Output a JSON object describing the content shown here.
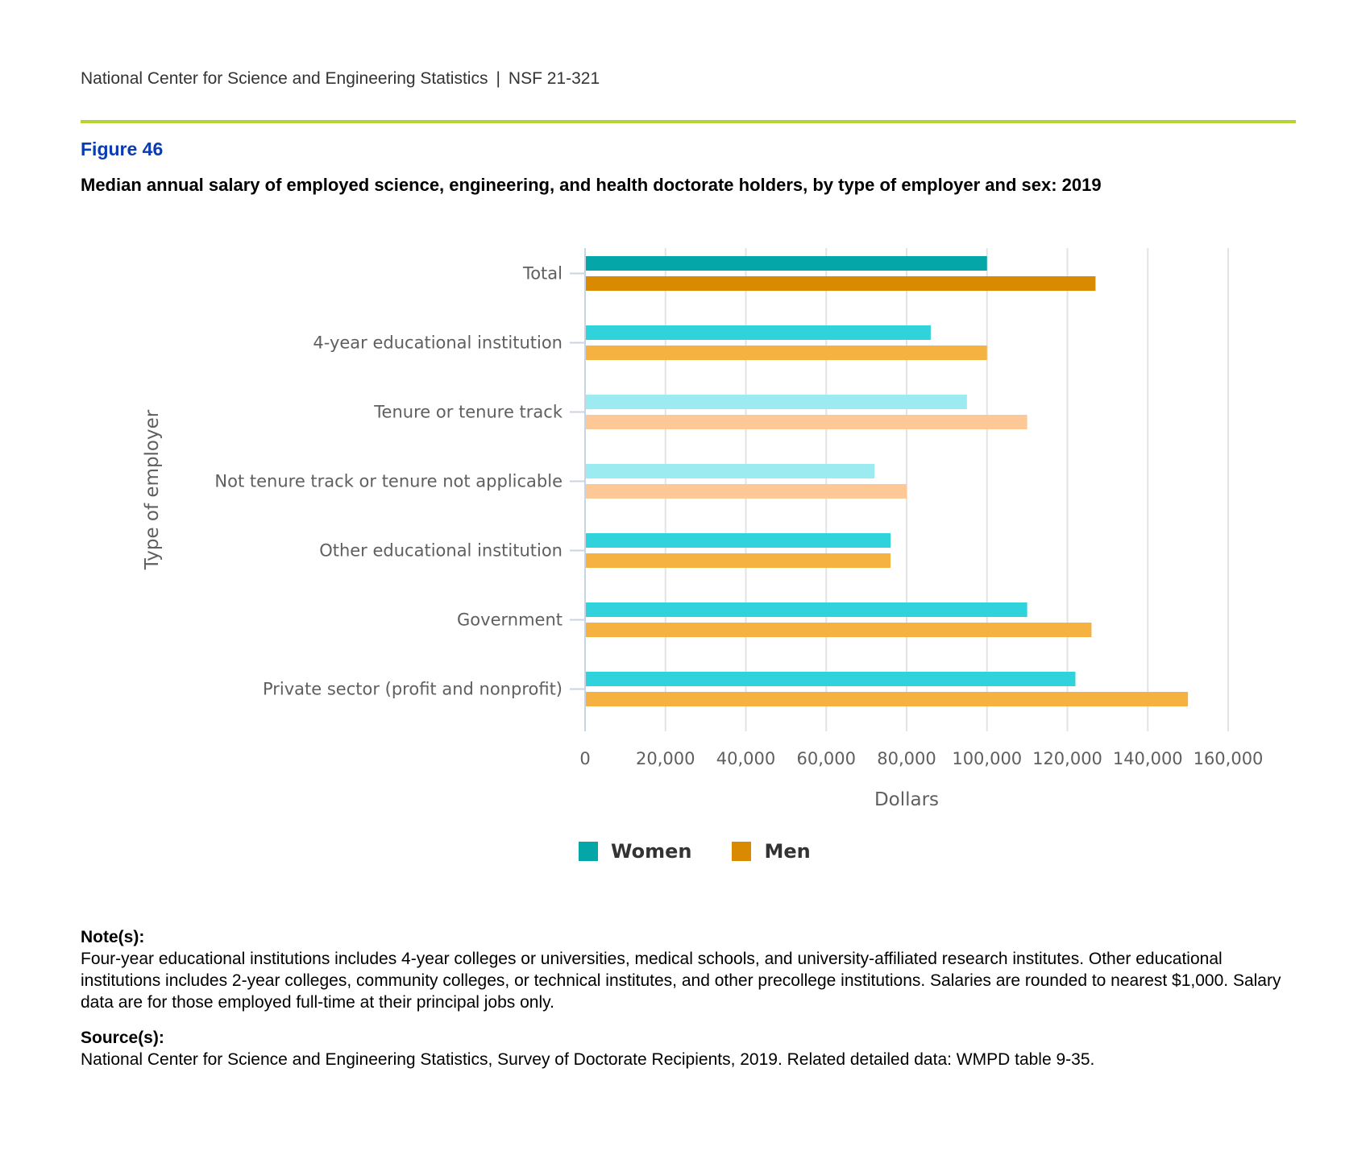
{
  "header": {
    "org": "National Center for Science and Engineering Statistics",
    "separator": "|",
    "report": "NSF 21-321"
  },
  "figure": {
    "label": "Figure 46",
    "title": "Median annual salary of employed science, engineering, and health doctorate holders, by type of employer and sex: 2019"
  },
  "chart_data": {
    "type": "bar",
    "orientation": "horizontal",
    "title": "",
    "xlabel": "Dollars",
    "ylabel": "Type of employer",
    "xlim": [
      0,
      160000
    ],
    "xticks": [
      0,
      20000,
      40000,
      60000,
      80000,
      100000,
      120000,
      140000,
      160000
    ],
    "xtick_labels": [
      "0",
      "20,000",
      "40,000",
      "60,000",
      "80,000",
      "100,000",
      "120,000",
      "140,000",
      "160,000"
    ],
    "grid": "vertical",
    "legend_position": "bottom-center",
    "categories": [
      "Total",
      "4-year educational institution",
      "Tenure or tenure track",
      "Not tenure track or tenure not applicable",
      "Other educational institution",
      "Government",
      "Private sector (profit and nonprofit)"
    ],
    "series": [
      {
        "name": "Women",
        "values": [
          100000,
          86000,
          95000,
          72000,
          76000,
          110000,
          122000
        ],
        "colors": [
          "#05a6a8",
          "#30d3dc",
          "#9bebf0",
          "#9bebf0",
          "#30d3dc",
          "#30d3dc",
          "#30d3dc"
        ]
      },
      {
        "name": "Men",
        "values": [
          127000,
          100000,
          110000,
          80000,
          76000,
          126000,
          150000
        ],
        "colors": [
          "#d98a00",
          "#f6b241",
          "#fcc996",
          "#fcc996",
          "#f6b241",
          "#f6b241",
          "#f6b241"
        ]
      }
    ],
    "legend_colors": {
      "Women": "#05a6a8",
      "Men": "#d98a00"
    }
  },
  "notes": {
    "note_heading": "Note(s):",
    "note_text": "Four-year educational institutions includes 4-year colleges or universities, medical schools, and university-affiliated research institutes. Other educational institutions includes 2-year colleges, community colleges, or technical institutes, and other precollege institutions. Salaries are rounded to nearest $1,000. Salary data are for those employed full-time at their principal jobs only.",
    "source_heading": "Source(s):",
    "source_text": "National Center for Science and Engineering Statistics, Survey of Doctorate Recipients, 2019. Related detailed data: WMPD table 9-35."
  }
}
